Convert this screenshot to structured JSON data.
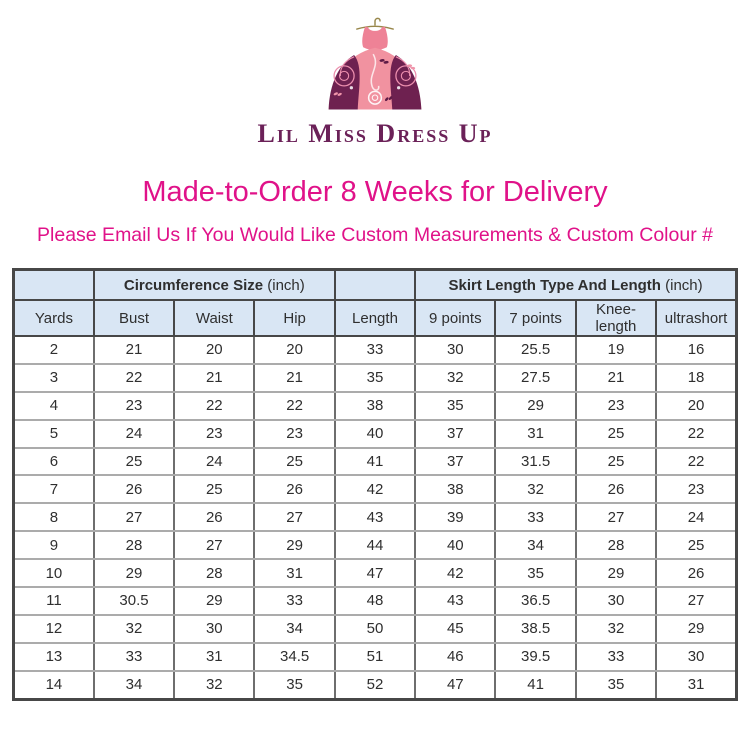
{
  "logo": {
    "brand": "Lil Miss Dress Up",
    "icon": "dress-on-hanger-icon"
  },
  "heading": "Made-to-Order 8 Weeks for Delivery",
  "subheading": "Please Email Us If You Would Like Custom Measurements & Custom Colour #",
  "table": {
    "group1_title": "Circumference Size",
    "group1_unit": " (inch)",
    "group2_title": "Skirt Length Type And Length",
    "group2_unit": " (inch)",
    "columns": [
      "Yards",
      "Bust",
      "Waist",
      "Hip",
      "Length",
      "9 points",
      "7 points",
      "Knee-length",
      "ultrashort"
    ],
    "rows": [
      [
        "2",
        "21",
        "20",
        "20",
        "33",
        "30",
        "25.5",
        "19",
        "16"
      ],
      [
        "3",
        "22",
        "21",
        "21",
        "35",
        "32",
        "27.5",
        "21",
        "18"
      ],
      [
        "4",
        "23",
        "22",
        "22",
        "38",
        "35",
        "29",
        "23",
        "20"
      ],
      [
        "5",
        "24",
        "23",
        "23",
        "40",
        "37",
        "31",
        "25",
        "22"
      ],
      [
        "6",
        "25",
        "24",
        "25",
        "41",
        "37",
        "31.5",
        "25",
        "22"
      ],
      [
        "7",
        "26",
        "25",
        "26",
        "42",
        "38",
        "32",
        "26",
        "23"
      ],
      [
        "8",
        "27",
        "26",
        "27",
        "43",
        "39",
        "33",
        "27",
        "24"
      ],
      [
        "9",
        "28",
        "27",
        "29",
        "44",
        "40",
        "34",
        "28",
        "25"
      ],
      [
        "10",
        "29",
        "28",
        "31",
        "47",
        "42",
        "35",
        "29",
        "26"
      ],
      [
        "11",
        "30.5",
        "29",
        "33",
        "48",
        "43",
        "36.5",
        "30",
        "27"
      ],
      [
        "12",
        "32",
        "30",
        "34",
        "50",
        "45",
        "38.5",
        "32",
        "29"
      ],
      [
        "13",
        "33",
        "31",
        "34.5",
        "51",
        "46",
        "39.5",
        "33",
        "30"
      ],
      [
        "14",
        "34",
        "32",
        "35",
        "52",
        "47",
        "41",
        "35",
        "31"
      ]
    ]
  },
  "colors": {
    "accent_magenta": "#e01289",
    "header_blue": "#d9e6f4",
    "logo_purple": "#6b2158",
    "dress_pink": "#ee8296",
    "dress_dark_purple": "#6e2150",
    "hanger_gold": "#98874b",
    "border_dark": "#474747",
    "border_light": "#ababab"
  }
}
